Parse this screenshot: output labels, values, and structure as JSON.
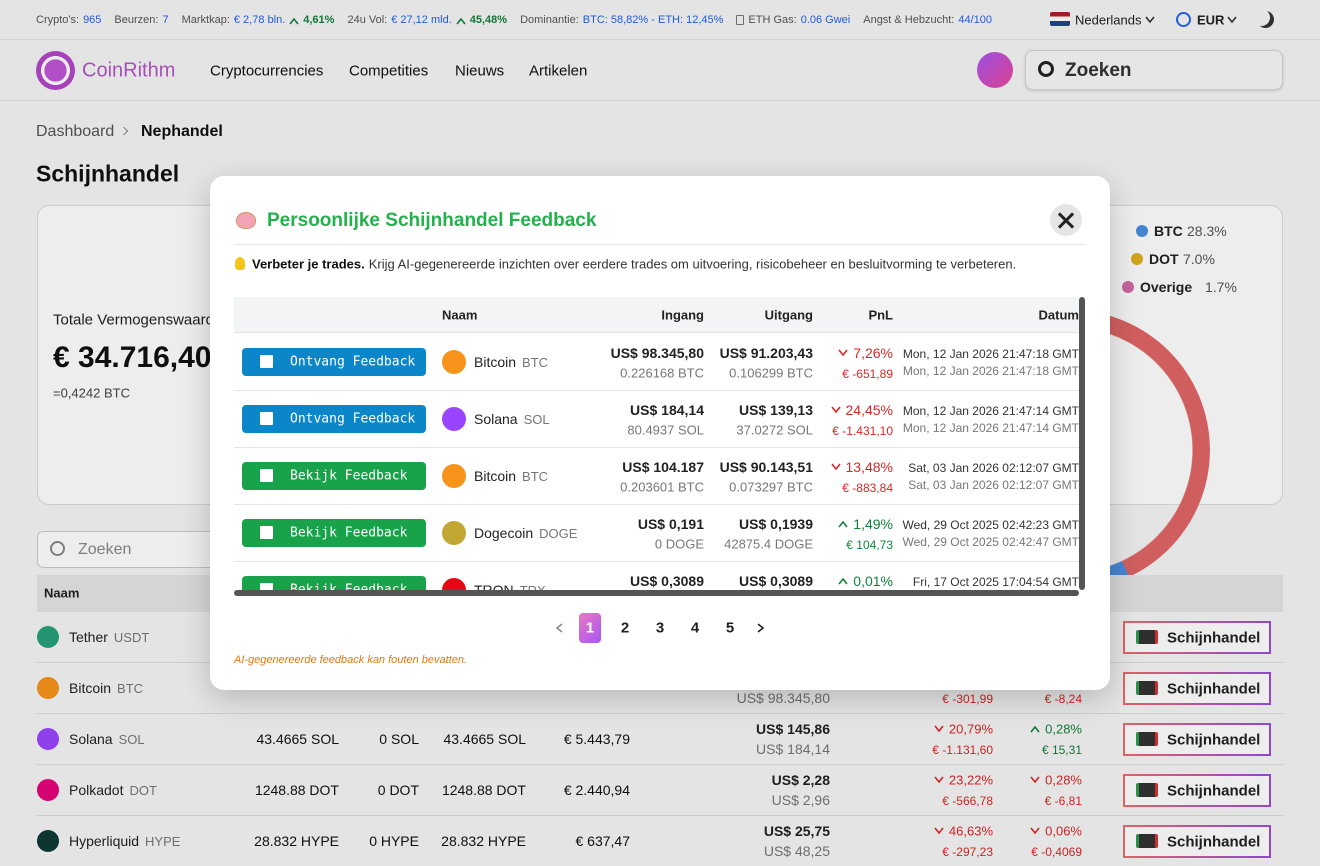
{
  "topbar": {
    "stats": [
      {
        "label": "Crypto's:",
        "value": "965"
      },
      {
        "label": "Beurzen:",
        "value": "7"
      },
      {
        "label": "Marktkap:",
        "value": "€ 2,78 bln.",
        "change": "4,61%"
      },
      {
        "label": "24u Vol:",
        "value": "€ 27,12 mld.",
        "change": "45,48%"
      },
      {
        "label": "Dominantie:",
        "value": "BTC: 58,82% - ETH: 12,45%"
      },
      {
        "label": "ETH Gas:",
        "value": "0.06 Gwei"
      },
      {
        "label": "Angst & Hebzucht:",
        "value": "44/100"
      }
    ],
    "language": "Nederlands",
    "currency": "EUR"
  },
  "nav": {
    "brand": "CoinRithm",
    "links": [
      "Cryptocurrencies",
      "Competities",
      "Nieuws",
      "Artikelen"
    ],
    "search": "Zoeken"
  },
  "breadcrumb": [
    "Dashboard",
    "Nephandel"
  ],
  "title": "Schijnhandel",
  "portfolio": {
    "label": "Totale Vermogenswaarde",
    "value": "€ 34.716,40",
    "btc": "=0,4242 BTC",
    "legend": [
      {
        "name": "BTC",
        "pct": "28.3%",
        "color": "#4a90e2"
      },
      {
        "name": "DOT",
        "pct": "7.0%",
        "color": "#e0b020"
      },
      {
        "name": "Overige",
        "pct": "1.7%",
        "color": "#d46aa8"
      }
    ]
  },
  "holdings": {
    "search": "Zoeken",
    "header": "Naam",
    "button": "Schijnhandel",
    "rows": [
      {
        "name": "Tether",
        "symbol": "USDT",
        "color": "#26a17b"
      },
      {
        "name": "Bitcoin",
        "symbol": "BTC",
        "color": "#f7931a",
        "price_entry": "US$ 98.345,80",
        "pnl_eur": "€ -301,99",
        "change_eur": "€ -8,24"
      },
      {
        "name": "Solana",
        "symbol": "SOL",
        "color": "#9945ff",
        "amount": "43.4665 SOL",
        "locked": "0 SOL",
        "available": "43.4665 SOL",
        "value": "€ 5.443,79",
        "price_now": "US$ 145,86",
        "price_entry": "US$ 184,14",
        "pnl": "20,79%",
        "pnl_dir": "down",
        "pnl_eur": "€ -1.131,60",
        "change": "0,28%",
        "change_dir": "up",
        "change_eur": "€ 15,31"
      },
      {
        "name": "Polkadot",
        "symbol": "DOT",
        "color": "#e6007a",
        "amount": "1248.88 DOT",
        "locked": "0 DOT",
        "available": "1248.88 DOT",
        "value": "€ 2.440,94",
        "price_now": "US$ 2,28",
        "price_entry": "US$ 2,96",
        "pnl": "23,22%",
        "pnl_dir": "down",
        "pnl_eur": "€ -566,78",
        "change": "0,28%",
        "change_dir": "down",
        "change_eur": "€ -6,81"
      },
      {
        "name": "Hyperliquid",
        "symbol": "HYPE",
        "color": "#0f3b36",
        "amount": "28.832 HYPE",
        "locked": "0 HYPE",
        "available": "28.832 HYPE",
        "value": "€ 637,47",
        "price_now": "US$ 25,75",
        "price_entry": "US$ 48,25",
        "pnl": "46,63%",
        "pnl_dir": "down",
        "pnl_eur": "€ -297,23",
        "change": "0,06%",
        "change_dir": "down",
        "change_eur": "€ -0,4069"
      }
    ]
  },
  "modal": {
    "title": "Persoonlijke Schijnhandel Feedback",
    "intro_bold": "Verbeter je trades.",
    "intro": "Krijg AI-gegenereerde inzichten over eerdere trades om uitvoering, risicobeheer en besluitvorming te verbeteren.",
    "columns": [
      "Naam",
      "Ingang",
      "Uitgang",
      "PnL",
      "Datum"
    ],
    "rows": [
      {
        "action": "Ontvang Feedback",
        "kind": "new",
        "name": "Bitcoin",
        "symbol": "BTC",
        "color": "#f7931a",
        "entry": "US$ 98.345,80",
        "entry_qty": "0.226168 BTC",
        "exit": "US$ 91.203,43",
        "exit_qty": "0.106299 BTC",
        "pnl": "7,26%",
        "dir": "down",
        "pnl_eur": "€ -651,89",
        "date_open": "Mon, 12 Jan 2026 21:47:18 GMT",
        "date_close": "Mon, 12 Jan 2026 21:47:18 GMT"
      },
      {
        "action": "Ontvang Feedback",
        "kind": "new",
        "name": "Solana",
        "symbol": "SOL",
        "color": "#9945ff",
        "entry": "US$ 184,14",
        "entry_qty": "80.4937 SOL",
        "exit": "US$ 139,13",
        "exit_qty": "37.0272 SOL",
        "pnl": "24,45%",
        "dir": "down",
        "pnl_eur": "€ -1.431,10",
        "date_open": "Mon, 12 Jan 2026 21:47:14 GMT",
        "date_close": "Mon, 12 Jan 2026 21:47:14 GMT"
      },
      {
        "action": "Bekijk Feedback",
        "kind": "view",
        "name": "Bitcoin",
        "symbol": "BTC",
        "color": "#f7931a",
        "entry": "US$ 104.187",
        "entry_qty": "0.203601 BTC",
        "exit": "US$ 90.143,51",
        "exit_qty": "0.073297 BTC",
        "pnl": "13,48%",
        "dir": "down",
        "pnl_eur": "€ -883,84",
        "date_open": "Sat, 03 Jan 2026 02:12:07 GMT",
        "date_close": "Sat, 03 Jan 2026 02:12:07 GMT"
      },
      {
        "action": "Bekijk Feedback",
        "kind": "view",
        "name": "Dogecoin",
        "symbol": "DOGE",
        "color": "#c2a633",
        "entry": "US$ 0,191",
        "entry_qty": "0 DOGE",
        "exit": "US$ 0,1939",
        "exit_qty": "42875.4 DOGE",
        "pnl": "1,49%",
        "dir": "up",
        "pnl_eur": "€ 104,73",
        "date_open": "Wed, 29 Oct 2025 02:42:23 GMT",
        "date_close": "Wed, 29 Oct 2025 02:42:47 GMT"
      },
      {
        "action": "Bekijk Feedback",
        "kind": "view",
        "name": "TRON",
        "symbol": "TRX",
        "color": "#e50915",
        "entry": "US$ 0,3089",
        "exit": "US$ 0,3089",
        "pnl": "0,01%",
        "dir": "up",
        "date_open": "Fri, 17 Oct 2025 17:04:54 GMT"
      }
    ],
    "pages": [
      "1",
      "2",
      "3",
      "4",
      "5"
    ],
    "footnote": "AI-gegenereerde feedback kan fouten bevatten."
  }
}
